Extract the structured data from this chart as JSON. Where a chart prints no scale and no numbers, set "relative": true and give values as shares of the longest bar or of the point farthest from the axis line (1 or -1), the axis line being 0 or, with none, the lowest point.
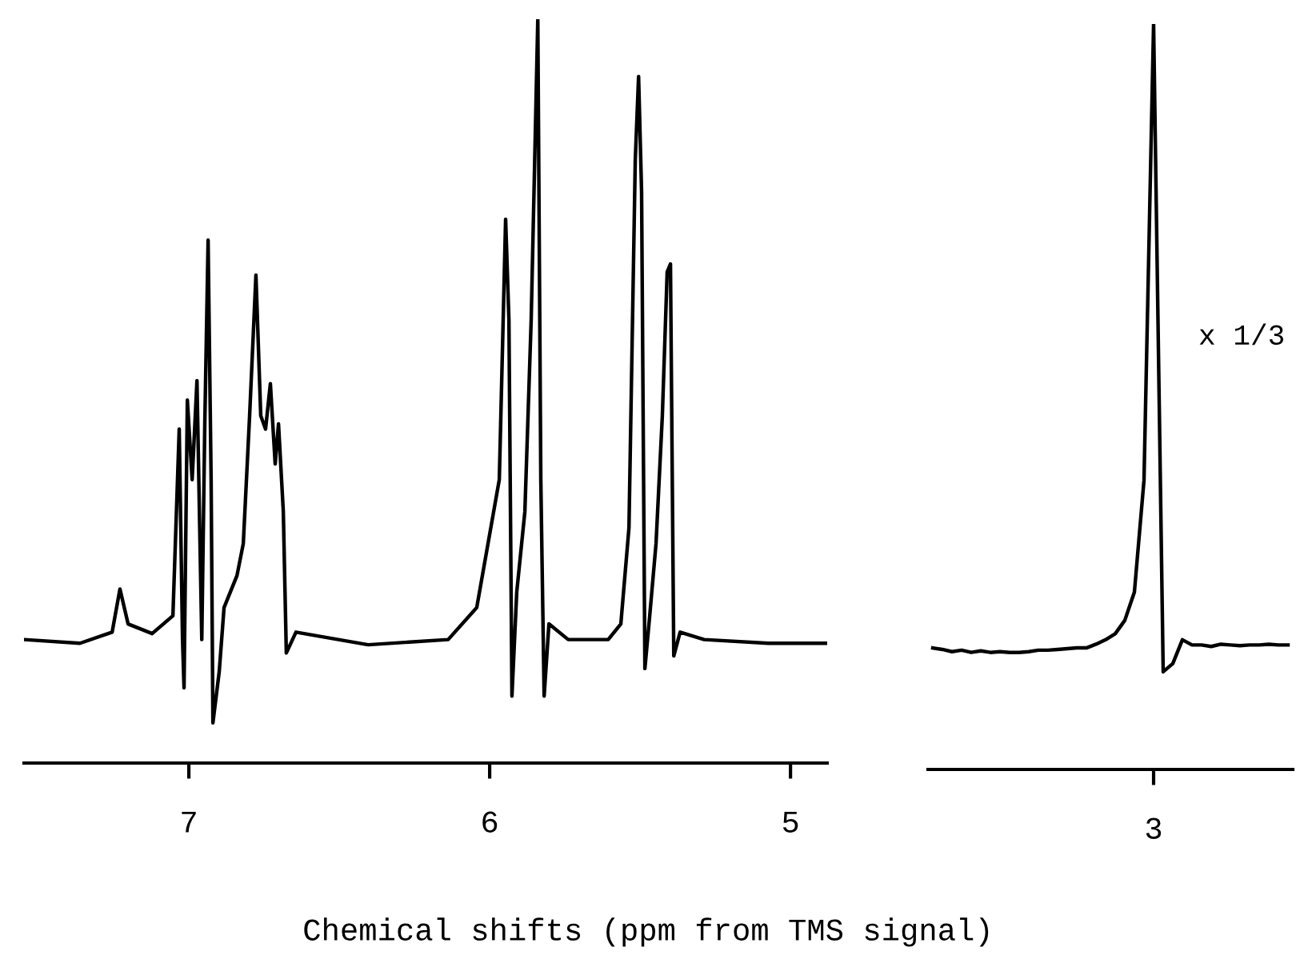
{
  "chart_data": [
    {
      "type": "line",
      "relative": true,
      "xlim": [
        7.548,
        4.878
      ],
      "xticks": [
        7,
        6,
        5
      ],
      "tick_labels": "x",
      "xlabel": "Chemical shifts (ppm from TMS signal)",
      "series": [
        {
          "color": "#000000",
          "x": [
            7.548,
            7.362,
            7.255,
            7.229,
            7.202,
            7.122,
            7.053,
            7.032,
            7.021,
            7.016,
            7.005,
            6.989,
            6.973,
            6.957,
            6.947,
            6.936,
            6.926,
            6.92,
            6.899,
            6.883,
            6.84,
            6.819,
            6.798,
            6.777,
            6.761,
            6.745,
            6.729,
            6.713,
            6.702,
            6.686,
            6.676,
            6.644,
            6.404,
            6.138,
            6.043,
            5.968,
            5.947,
            5.936,
            5.926,
            5.91,
            5.883,
            5.862,
            5.84,
            5.83,
            5.819,
            5.803,
            5.739,
            5.606,
            5.564,
            5.537,
            5.516,
            5.505,
            5.495,
            5.484,
            5.468,
            5.447,
            5.426,
            5.41,
            5.399,
            5.388,
            5.367,
            5.287,
            5.074,
            4.878
          ],
          "values": [
            0.166,
            0.161,
            0.176,
            0.234,
            0.187,
            0.174,
            0.198,
            0.449,
            0.166,
            0.101,
            0.488,
            0.381,
            0.514,
            0.166,
            0.456,
            0.703,
            0.381,
            0.054,
            0.123,
            0.209,
            0.252,
            0.295,
            0.467,
            0.656,
            0.467,
            0.449,
            0.51,
            0.402,
            0.456,
            0.338,
            0.148,
            0.176,
            0.159,
            0.166,
            0.209,
            0.381,
            0.731,
            0.596,
            0.09,
            0.23,
            0.338,
            0.596,
            1.0,
            0.381,
            0.09,
            0.187,
            0.166,
            0.166,
            0.187,
            0.316,
            0.811,
            0.923,
            0.768,
            0.127,
            0.198,
            0.295,
            0.467,
            0.66,
            0.671,
            0.144,
            0.176,
            0.166,
            0.161,
            0.161
          ]
        }
      ]
    },
    {
      "type": "line",
      "relative": true,
      "tick_labels": "x",
      "annotations": [
        "x 1/3",
        "3"
      ],
      "categories": [
        null,
        null,
        null,
        null,
        null,
        null,
        null,
        null,
        null,
        null,
        null,
        null,
        null,
        null,
        null,
        null,
        null,
        null,
        null,
        null,
        null,
        null,
        null,
        null,
        null,
        null,
        null,
        null,
        null,
        null,
        null,
        null,
        null,
        null,
        null,
        null,
        null,
        null
      ],
      "series": [
        {
          "color": "#000000",
          "values": [
            0.163,
            0.161,
            0.158,
            0.16,
            0.157,
            0.159,
            0.157,
            0.158,
            0.157,
            0.157,
            0.158,
            0.16,
            0.16,
            0.161,
            0.162,
            0.163,
            0.163,
            0.168,
            0.174,
            0.182,
            0.2,
            0.238,
            0.388,
            1.0,
            0.131,
            0.142,
            0.174,
            0.167,
            0.167,
            0.165,
            0.168,
            0.167,
            0.166,
            0.167,
            0.167,
            0.168,
            0.167,
            0.167
          ]
        }
      ]
    }
  ]
}
